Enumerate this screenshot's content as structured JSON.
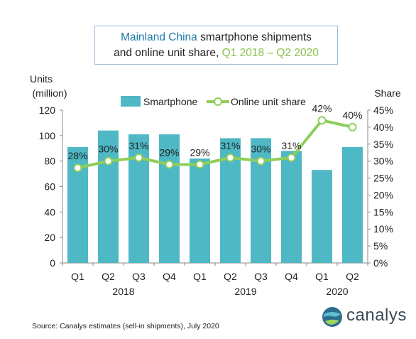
{
  "title": {
    "part1": "Mainland China",
    "part2": " smartphone shipments",
    "part3": "and online unit share, ",
    "part4": "Q1 2018 – Q2 2020"
  },
  "source": "Source: Canalys estimates (sell-in shipments), July 2020",
  "logo": {
    "text": "canalys",
    "icon": "globe-icon"
  },
  "colors": {
    "bar": "#4fb8c5",
    "line": "#8fce5a",
    "title_blue": "#1f7aa8",
    "title_green": "#8cc24f"
  },
  "chart_data": {
    "type": "bar+line",
    "categories": [
      "Q1",
      "Q2",
      "Q3",
      "Q4",
      "Q1",
      "Q2",
      "Q3",
      "Q4",
      "Q1",
      "Q2"
    ],
    "year_groups": [
      {
        "label": "2018",
        "span": [
          0,
          3
        ]
      },
      {
        "label": "2019",
        "span": [
          4,
          7
        ]
      },
      {
        "label": "2020",
        "span": [
          8,
          9
        ]
      }
    ],
    "series": [
      {
        "name": "Smartphone",
        "kind": "bar",
        "axis": "left",
        "values": [
          91,
          104,
          101,
          101,
          82,
          98,
          98,
          88,
          73,
          91
        ]
      },
      {
        "name": "Online unit share",
        "kind": "line",
        "axis": "right",
        "values": [
          28,
          30,
          31,
          29,
          29,
          31,
          30,
          31,
          42,
          40
        ],
        "labels": [
          "28%",
          "30%",
          "31%",
          "29%",
          "29%",
          "31%",
          "30%",
          "31%",
          "42%",
          "40%"
        ]
      }
    ],
    "ylabel_left": [
      "Units",
      "(million)"
    ],
    "ylabel_right": "Share",
    "ylim_left": [
      0,
      120
    ],
    "yticks_left": [
      "0",
      "20",
      "40",
      "60",
      "80",
      "100",
      "120"
    ],
    "ylim_right": [
      0,
      45
    ],
    "yticks_right": [
      "0%",
      "5%",
      "10%",
      "15%",
      "20%",
      "25%",
      "30%",
      "35%",
      "40%",
      "45%"
    ],
    "legend_position": "top",
    "grid": false
  }
}
